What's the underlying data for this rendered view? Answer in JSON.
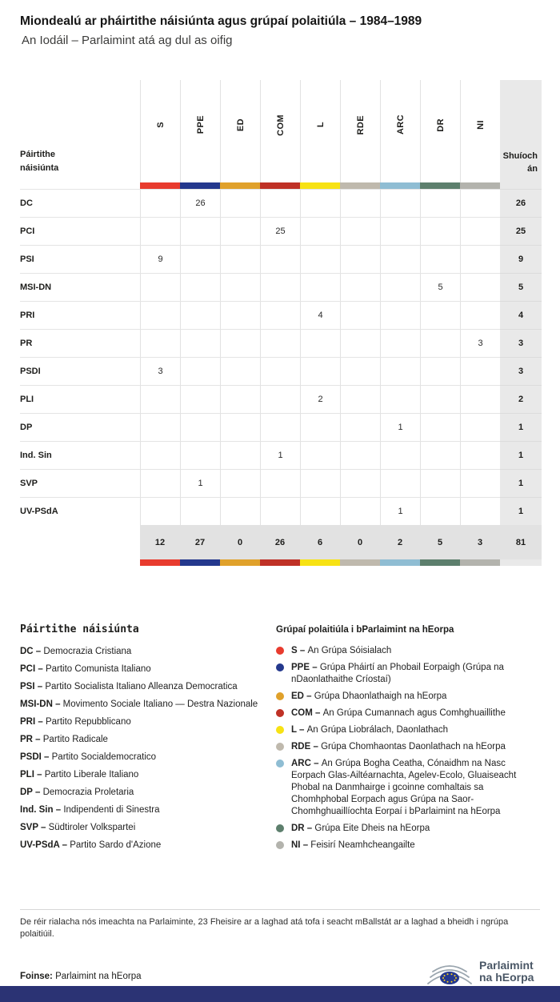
{
  "chart_data": {
    "type": "table",
    "title": "Miondealú ar pháirtithe náisiúnta agus grúpaí polaitiúla – 1984–1989",
    "subtitle": "An Iodáil – Parlaimint atá ag dul as oifig",
    "row_header_label": "Páirtithe náisiúnta",
    "seats_label": "Shuíochán",
    "groups": [
      {
        "code": "S",
        "color": "#e83b2e"
      },
      {
        "code": "PPE",
        "color": "#24388d"
      },
      {
        "code": "ED",
        "color": "#e0a12b"
      },
      {
        "code": "COM",
        "color": "#bf3126"
      },
      {
        "code": "L",
        "color": "#f7e214"
      },
      {
        "code": "RDE",
        "color": "#bfb9ad"
      },
      {
        "code": "ARC",
        "color": "#8fbdd3"
      },
      {
        "code": "DR",
        "color": "#5d7f6d"
      },
      {
        "code": "NI",
        "color": "#b3b3ad"
      }
    ],
    "rows": [
      {
        "party": "DC",
        "values": {
          "PPE": 26
        },
        "total": 26
      },
      {
        "party": "PCI",
        "values": {
          "COM": 25
        },
        "total": 25
      },
      {
        "party": "PSI",
        "values": {
          "S": 9
        },
        "total": 9
      },
      {
        "party": "MSI-DN",
        "values": {
          "DR": 5
        },
        "total": 5
      },
      {
        "party": "PRI",
        "values": {
          "L": 4
        },
        "total": 4
      },
      {
        "party": "PR",
        "values": {
          "NI": 3
        },
        "total": 3
      },
      {
        "party": "PSDI",
        "values": {
          "S": 3
        },
        "total": 3
      },
      {
        "party": "PLI",
        "values": {
          "L": 2
        },
        "total": 2
      },
      {
        "party": "DP",
        "values": {
          "ARC": 1
        },
        "total": 1
      },
      {
        "party": "Ind. Sin",
        "values": {
          "COM": 1
        },
        "total": 1
      },
      {
        "party": "SVP",
        "values": {
          "PPE": 1
        },
        "total": 1
      },
      {
        "party": "UV-PSdA",
        "values": {
          "ARC": 1
        },
        "total": 1
      }
    ],
    "totals": {
      "S": 12,
      "PPE": 27,
      "ED": 0,
      "COM": 26,
      "L": 6,
      "RDE": 0,
      "ARC": 2,
      "DR": 5,
      "NI": 3,
      "total": 81
    }
  },
  "legend_parties": {
    "title": "Páirtithe náisiúnta",
    "items": [
      {
        "abbr": "DC",
        "name": "Democrazia Cristiana"
      },
      {
        "abbr": "PCI",
        "name": "Partito Comunista Italiano"
      },
      {
        "abbr": "PSI",
        "name": "Partito Socialista Italiano Alleanza Democratica"
      },
      {
        "abbr": "MSI-DN",
        "name": "Movimento Sociale Italiano — Destra Nazionale"
      },
      {
        "abbr": "PRI",
        "name": "Partito Repubblicano"
      },
      {
        "abbr": "PR",
        "name": "Partito Radicale"
      },
      {
        "abbr": "PSDI",
        "name": "Partito Socialdemocratico"
      },
      {
        "abbr": "PLI",
        "name": "Partito Liberale Italiano"
      },
      {
        "abbr": "DP",
        "name": "Democrazia Proletaria"
      },
      {
        "abbr": "Ind. Sin",
        "name": "Indipendenti di Sinestra"
      },
      {
        "abbr": "SVP",
        "name": "Südtiroler Volkspartei"
      },
      {
        "abbr": "UV-PSdA",
        "name": "Partito Sardo d'Azione"
      }
    ]
  },
  "legend_groups": {
    "title": "Grúpaí polaitiúla i bParlaimint na hEorpa",
    "items": [
      {
        "code": "S",
        "color": "#e83b2e",
        "name": "An Grúpa Sóisialach"
      },
      {
        "code": "PPE",
        "color": "#24388d",
        "name": "Grúpa Pháirtí an Phobail Eorpaigh (Grúpa na nDaonlathaithe Críostaí)"
      },
      {
        "code": "ED",
        "color": "#e0a12b",
        "name": "Grúpa Dhaonlathaigh na hEorpa"
      },
      {
        "code": "COM",
        "color": "#bf3126",
        "name": "An Grúpa Cumannach agus Comhghuaillithe"
      },
      {
        "code": "L",
        "color": "#f7e214",
        "name": "An Grúpa Liobrálach, Daonlathach"
      },
      {
        "code": "RDE",
        "color": "#bfb9ad",
        "name": "Grúpa Chomhaontas Daonlathach na hEorpa"
      },
      {
        "code": "ARC",
        "color": "#8fbdd3",
        "name": "An Grúpa Bogha Ceatha, Cónaidhm na Nasc Eorpach Glas-Ailtéarnachta, Agelev-Ecolo, Gluaiseacht Phobal na Danmhairge i gcoinne comhaltais sa Chomhphobal Eorpach agus Grúpa na Saor-Chomhghuaillíochta Eorpaí i bParlaimint na hEorpa"
      },
      {
        "code": "DR",
        "color": "#5d7f6d",
        "name": "Grúpa Eite Dheis na hEorpa"
      },
      {
        "code": "NI",
        "color": "#b3b3ad",
        "name": "Feisirí Neamhcheangailte"
      }
    ]
  },
  "footnote": "De réir rialacha nós imeachta na Parlaiminte, 23 Fheisire ar a laghad atá tofa i seacht mBallstát ar a laghad a bheidh i ngrúpa polaitiúil.",
  "source": {
    "label": "Foinse:",
    "text": "Parlaimint na hEorpa"
  },
  "logo": {
    "line1": "Parlaimint",
    "line2": "na hEorpa"
  }
}
